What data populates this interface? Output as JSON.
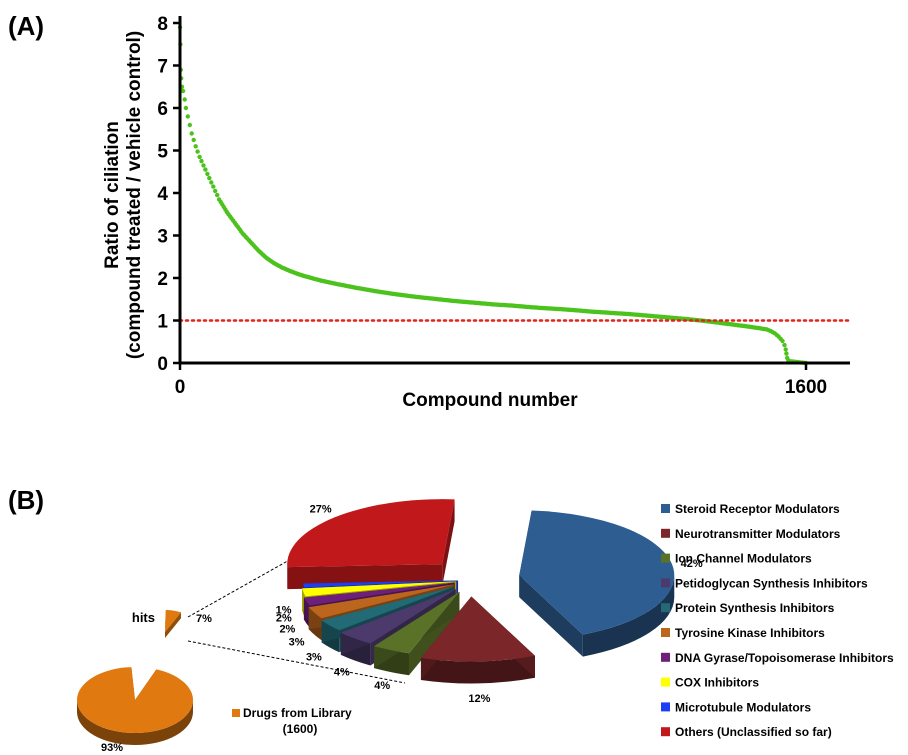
{
  "panel_a_label": "(A)",
  "panel_b_label": "(B)",
  "chart_data": [
    {
      "type": "scatter",
      "title": "",
      "xlabel": "Compound number",
      "ylabel": "Ratio of ciliation\n(compound treated / vehicle control)",
      "xlim": [
        0,
        1600
      ],
      "ylim": [
        0,
        8
      ],
      "x_tick_labels": [
        "0",
        "1600"
      ],
      "y_tick_labels": [
        "0",
        "1",
        "2",
        "3",
        "4",
        "5",
        "6",
        "7",
        "8"
      ],
      "point_color": "#4cc21c",
      "reference_line": {
        "y": 1,
        "style": "dotted",
        "color": "#e3211c"
      },
      "x": [
        0,
        1,
        2,
        3,
        5,
        8,
        12,
        15,
        20,
        25,
        30,
        40,
        50,
        60,
        70,
        80,
        90,
        100,
        120,
        140,
        160,
        180,
        200,
        220,
        240,
        260,
        280,
        300,
        320,
        340,
        360,
        380,
        400,
        450,
        500,
        550,
        600,
        650,
        700,
        750,
        800,
        850,
        900,
        950,
        1000,
        1050,
        1100,
        1150,
        1200,
        1250,
        1300,
        1350,
        1400,
        1450,
        1480,
        1500,
        1510,
        1520,
        1530,
        1540,
        1545,
        1548,
        1550,
        1552,
        1555,
        1560,
        1570,
        1580,
        1590,
        1600
      ],
      "y": [
        7.9,
        7.5,
        6.9,
        6.7,
        6.5,
        6.4,
        6.2,
        6.0,
        5.8,
        5.6,
        5.4,
        5.1,
        4.85,
        4.65,
        4.45,
        4.25,
        4.05,
        3.85,
        3.55,
        3.3,
        3.05,
        2.85,
        2.65,
        2.48,
        2.35,
        2.25,
        2.17,
        2.1,
        2.04,
        1.99,
        1.94,
        1.9,
        1.86,
        1.77,
        1.69,
        1.62,
        1.56,
        1.51,
        1.46,
        1.42,
        1.38,
        1.35,
        1.31,
        1.28,
        1.25,
        1.21,
        1.18,
        1.15,
        1.11,
        1.07,
        1.03,
        0.98,
        0.92,
        0.86,
        0.82,
        0.79,
        0.75,
        0.7,
        0.62,
        0.52,
        0.42,
        0.32,
        0.22,
        0.12,
        0.06,
        0.04,
        0.03,
        0.02,
        0.01,
        0.0
      ]
    },
    {
      "type": "pie",
      "categories": [
        "hits",
        "Drugs from Library"
      ],
      "values": [
        7,
        93
      ],
      "value_labels": [
        "7%",
        "93%"
      ],
      "colors": [
        "#e07a10",
        "#e07a10"
      ],
      "annotation": "(1600)"
    },
    {
      "type": "pie",
      "categories": [
        "Steroid Receptor Modulators",
        "Neurotransmitter Modulators",
        "Ion Channel Modulators",
        "Petidoglycan Synthesis Inhibitors",
        "Protein Synthesis Inhibitors",
        "Tyrosine Kinase Inhibitors",
        "DNA Gyrase/Topoisomerase Inhibitors",
        "COX Inhibitors",
        "Microtubule Modulators",
        "Others (Unclassified so far)"
      ],
      "values": [
        42,
        12,
        4,
        4,
        3,
        3,
        2,
        2,
        1,
        27
      ],
      "value_labels": [
        "42%",
        "12%",
        "4%",
        "4%",
        "3%",
        "3%",
        "2%",
        "2%",
        "1%",
        "27%"
      ],
      "colors": [
        "#2e5d91",
        "#7b2628",
        "#5a7228",
        "#4b3a6b",
        "#236a77",
        "#bb651d",
        "#6e1f7a",
        "#ffff00",
        "#1b3ff5",
        "#c0181b"
      ],
      "legend_position": "right"
    }
  ]
}
